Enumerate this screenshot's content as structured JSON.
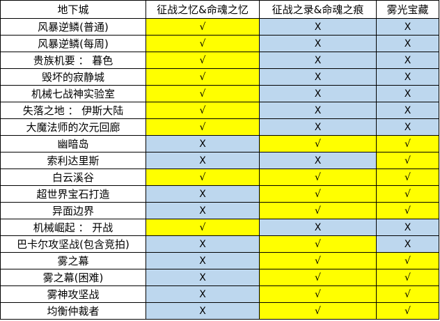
{
  "colors": {
    "yes": "#FFFF00",
    "no": "#BDD7EE"
  },
  "symbols": {
    "yes": "√",
    "no": "X"
  },
  "table": {
    "headers": [
      "地下城",
      "征战之忆&命魂之忆",
      "征战之录&命魂之痕",
      "雾光宝藏"
    ],
    "rows": [
      {
        "name": "风暴逆鳞(普通)",
        "values": [
          true,
          false,
          false
        ]
      },
      {
        "name": "风暴逆鳞(每周)",
        "values": [
          true,
          false,
          false
        ]
      },
      {
        "name": "贵族机要 ： 暮色",
        "values": [
          true,
          false,
          false
        ]
      },
      {
        "name": "毁坏的寂静城",
        "values": [
          true,
          false,
          false
        ]
      },
      {
        "name": "机械七战神实验室",
        "values": [
          true,
          false,
          false
        ]
      },
      {
        "name": "失落之地 ： 伊斯大陆",
        "values": [
          true,
          false,
          false
        ]
      },
      {
        "name": "大魔法师的次元回廊",
        "values": [
          true,
          false,
          false
        ]
      },
      {
        "name": "幽暗岛",
        "values": [
          false,
          true,
          true
        ]
      },
      {
        "name": "索利达里斯",
        "values": [
          false,
          false,
          true
        ]
      },
      {
        "name": "白云溪谷",
        "values": [
          true,
          true,
          true
        ]
      },
      {
        "name": "超世界宝石打造",
        "values": [
          false,
          true,
          true
        ]
      },
      {
        "name": "异面边界",
        "values": [
          false,
          true,
          true
        ]
      },
      {
        "name": "机械崛起 ： 开战",
        "values": [
          true,
          false,
          false
        ]
      },
      {
        "name": "巴卡尔攻坚战(包含竞拍)",
        "values": [
          false,
          true,
          false
        ]
      },
      {
        "name": "雾之幕",
        "values": [
          false,
          true,
          true
        ]
      },
      {
        "name": "雾之幕(困难)",
        "values": [
          false,
          true,
          true
        ]
      },
      {
        "name": "雾神攻坚战",
        "values": [
          false,
          true,
          true
        ]
      },
      {
        "name": "均衡仲裁者",
        "values": [
          false,
          true,
          true
        ]
      }
    ]
  }
}
